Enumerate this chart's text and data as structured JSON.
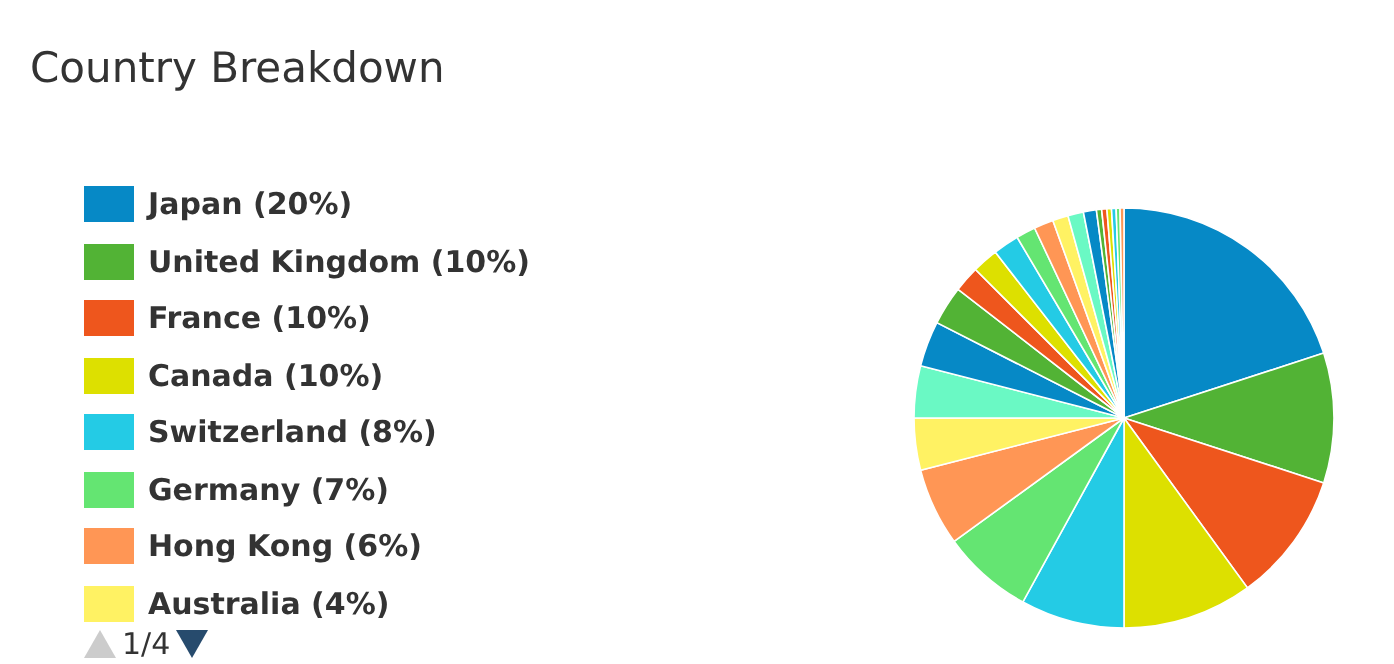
{
  "chart_data": {
    "type": "pie",
    "title": "Country Breakdown",
    "categories": [
      "Japan",
      "United Kingdom",
      "France",
      "Canada",
      "Switzerland",
      "Germany",
      "Hong Kong",
      "Australia",
      null,
      null,
      null,
      null,
      null,
      null,
      null,
      null,
      null,
      null,
      null,
      null,
      null,
      null,
      null,
      null,
      null
    ],
    "values": [
      20,
      10,
      10,
      10,
      8,
      7,
      6,
      4,
      4,
      3.5,
      3,
      2,
      2,
      2,
      1.5,
      1.5,
      1.2,
      1.2,
      1,
      0.4,
      0.4,
      0.35,
      0.35,
      0.3,
      0.3
    ],
    "value_labels": [
      "(20%)",
      "(10%)",
      "(10%)",
      "(10%)",
      "(8%)",
      "(7%)",
      "(6%)",
      "(4%)",
      null,
      null,
      null,
      null,
      null,
      null,
      null,
      null,
      null,
      null,
      null,
      null,
      null,
      null,
      null,
      null,
      null
    ],
    "colors": [
      "#0689c6",
      "#52b335",
      "#ee561d",
      "#dde000",
      "#24cbe5",
      "#64e572",
      "#ff9655",
      "#fff263",
      "#6af9c4",
      "#0689c6",
      "#52b335",
      "#ee561d",
      "#dde000",
      "#24cbe5",
      "#64e572",
      "#ff9655",
      "#fff263",
      "#6af9c4",
      "#0689c6",
      "#52b335",
      "#ee561d",
      "#dde000",
      "#24cbe5",
      "#64e572",
      "#ff9655"
    ],
    "legend": "left",
    "annotations": [
      "1/4"
    ]
  }
}
